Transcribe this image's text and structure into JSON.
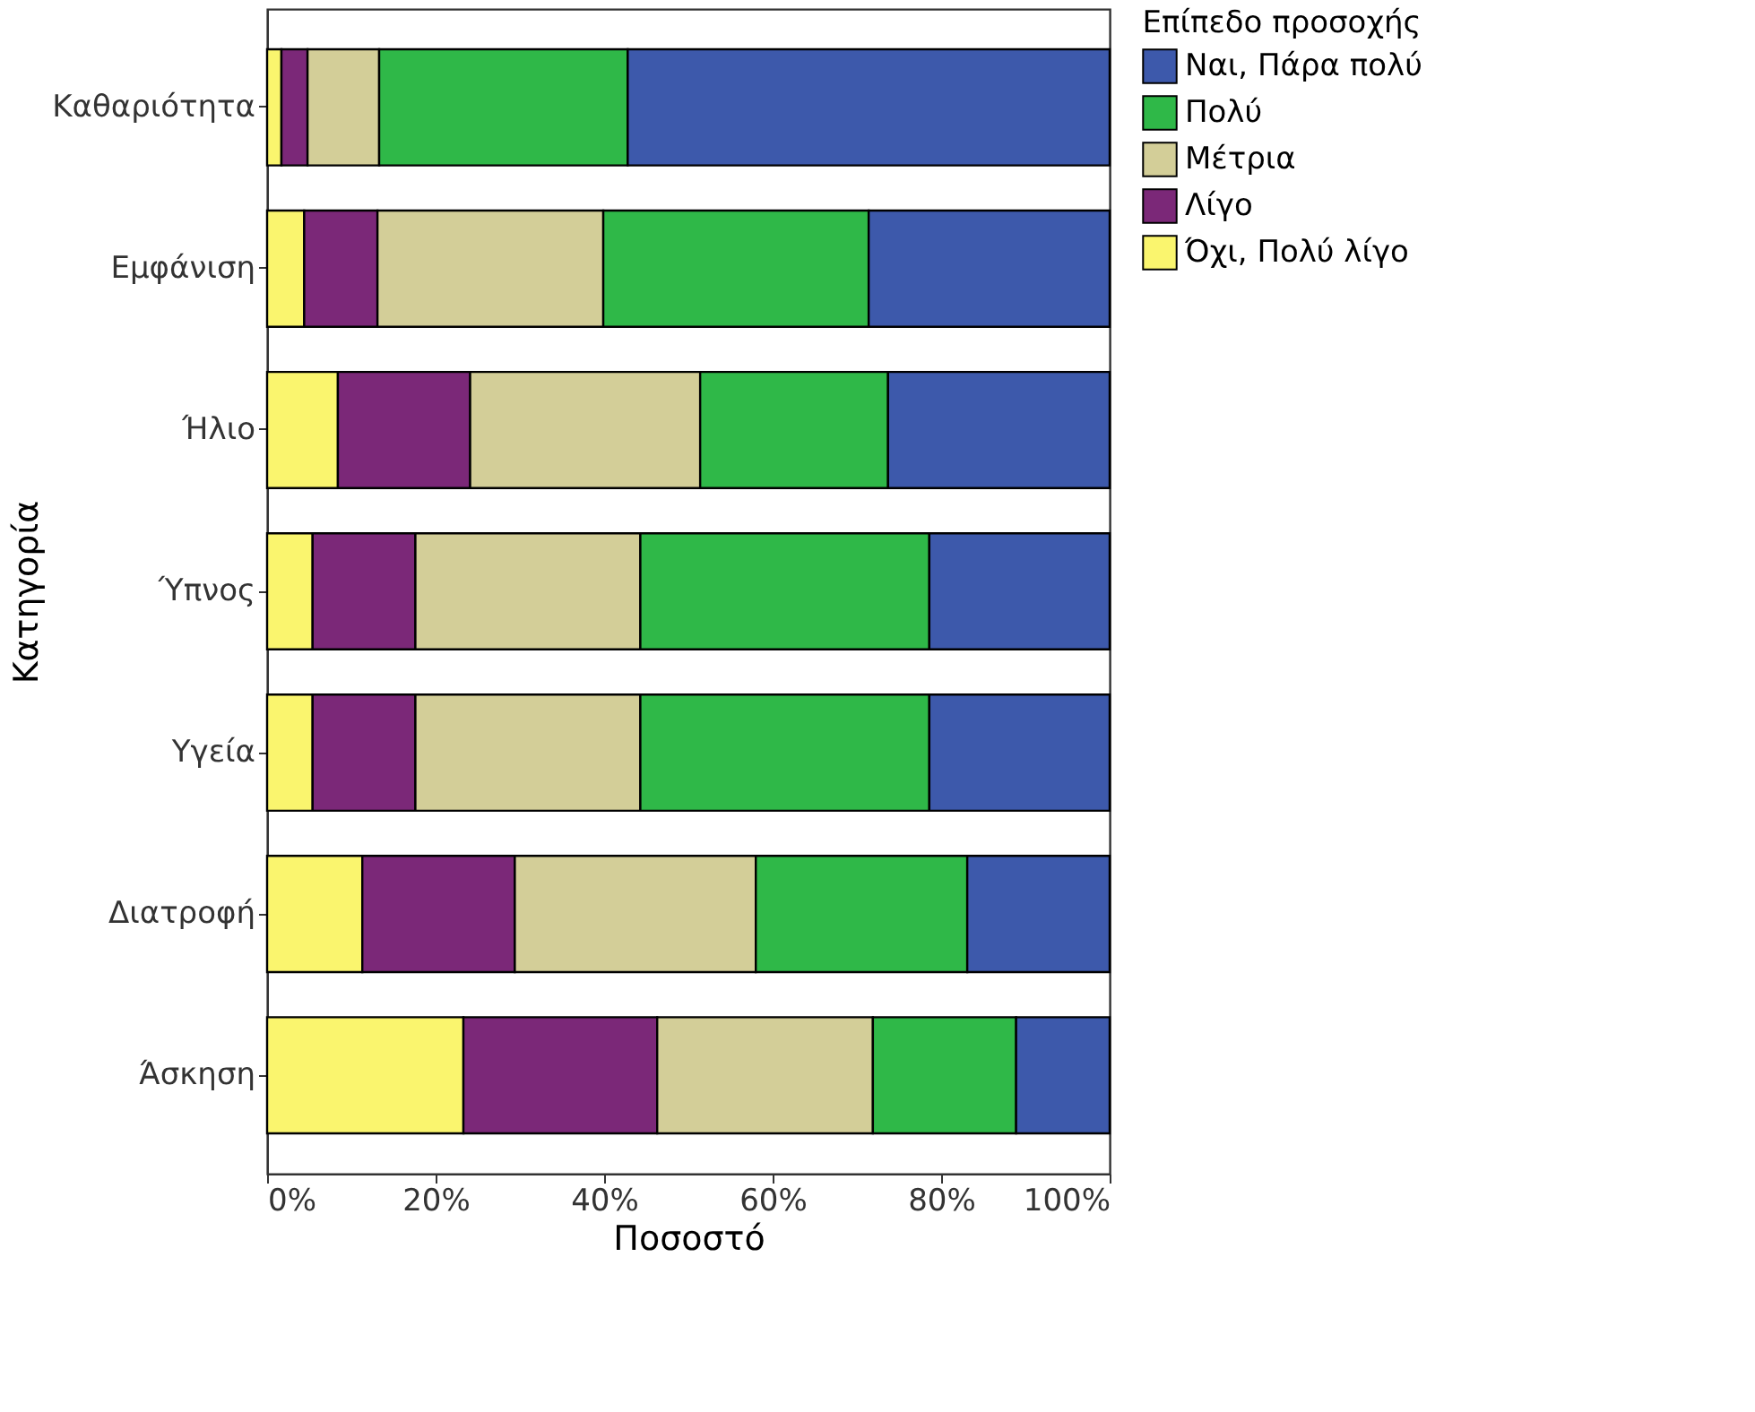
{
  "chart_data": {
    "type": "bar",
    "orientation": "horizontal",
    "stacked": true,
    "xlabel": "Ποσοστό",
    "ylabel": "Κατηγορία",
    "legend_title": "Επίπεδο προσοχής",
    "legend": "right",
    "grid": false,
    "categories": [
      "Καθαριότητα",
      "Εμφάνιση",
      "Ήλιο",
      "Ύπνος",
      "Υγεία",
      "Διατροφή",
      "Άσκηση"
    ],
    "xlim": [
      0,
      100
    ],
    "xticks": [
      {
        "value": 0,
        "label": "0%"
      },
      {
        "value": 20,
        "label": "20%"
      },
      {
        "value": 40,
        "label": "40%"
      },
      {
        "value": 60,
        "label": "60%"
      },
      {
        "value": 80,
        "label": "80%"
      },
      {
        "value": 100,
        "label": "100%"
      }
    ],
    "series": [
      {
        "name": "Όχι, Πολύ λίγο",
        "color": "#faf56e",
        "values": [
          1.7,
          4.4,
          8.4,
          5.4,
          5.4,
          11.3,
          23.3
        ]
      },
      {
        "name": "Λίγο",
        "color": "#7b2878",
        "values": [
          3.1,
          8.7,
          15.7,
          12.2,
          12.2,
          18.1,
          23.0
        ]
      },
      {
        "name": "Μέτρια",
        "color": "#d3ce98",
        "values": [
          8.5,
          26.8,
          27.3,
          26.7,
          26.7,
          28.6,
          25.6
        ]
      },
      {
        "name": "Πολύ",
        "color": "#2fb848",
        "values": [
          29.5,
          31.5,
          22.3,
          34.3,
          34.3,
          25.1,
          17.0
        ]
      },
      {
        "name": "Ναι, Πάρα πολύ",
        "color": "#3d59ab",
        "values": [
          57.2,
          28.6,
          26.3,
          21.4,
          21.4,
          16.9,
          11.1
        ]
      }
    ]
  }
}
